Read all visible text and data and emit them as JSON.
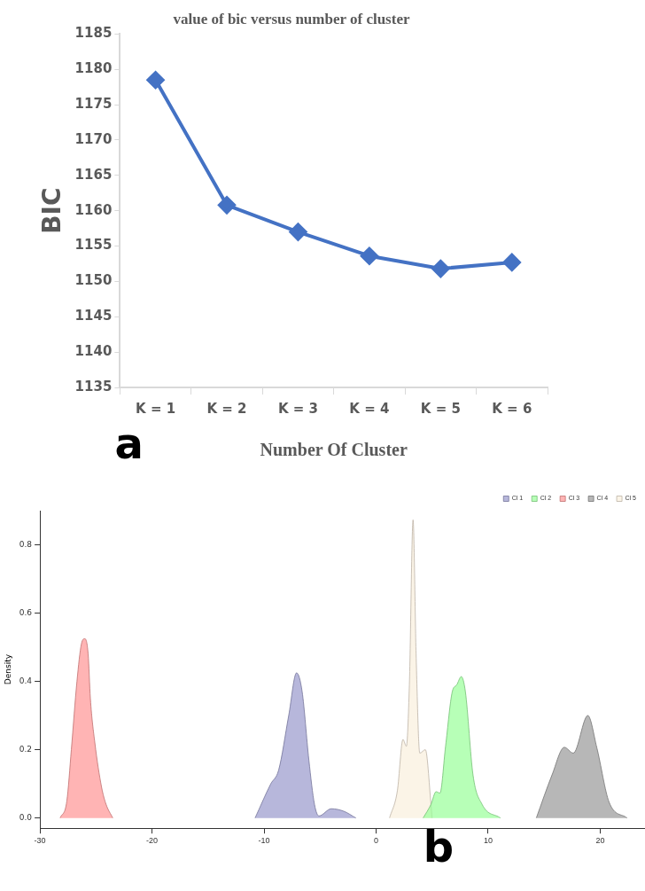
{
  "chart_data": [
    {
      "type": "line",
      "title": "value of bic versus number of cluster",
      "xlabel": "Number Of Cluster",
      "ylabel": "BIC",
      "annotations": [
        "a"
      ],
      "categories": [
        "K = 1",
        "K = 2",
        "K = 3",
        "K = 4",
        "K = 5",
        "K = 6"
      ],
      "series": [
        {
          "color": "#4472c4",
          "values": [
            1178.5,
            1160.8,
            1157,
            1153.6,
            1151.8,
            1152.7
          ]
        }
      ],
      "ylim": [
        1135,
        1185
      ],
      "yticks": [
        1135,
        1140,
        1145,
        1150,
        1155,
        1160,
        1165,
        1170,
        1175,
        1180,
        1185
      ],
      "grid": false,
      "marker": "diamond",
      "legend": false
    },
    {
      "type": "area",
      "ylabel": "Density",
      "annotations": [
        "b"
      ],
      "series": [
        {
          "name": "Cl 1",
          "color": "#9999cc",
          "x": [
            -10.8,
            -9.4,
            -8.7,
            -7.8,
            -7.1,
            -6.6,
            -6.0,
            -5.5,
            -5.1,
            -4.0,
            -2.9,
            -1.8
          ],
          "values": [
            0,
            0.1,
            0.14,
            0.3,
            0.425,
            0.37,
            0.17,
            0.04,
            0.006,
            0.027,
            0.02,
            0
          ]
        },
        {
          "name": "Cl 2",
          "color": "#99ff99",
          "x": [
            4.2,
            4.9,
            5.35,
            5.7,
            6.2,
            6.8,
            7.2,
            7.6,
            7.97,
            8.65,
            9.46,
            11.1
          ],
          "values": [
            0,
            0.04,
            0.077,
            0.073,
            0.21,
            0.37,
            0.39,
            0.414,
            0.37,
            0.126,
            0.04,
            0
          ]
        },
        {
          "name": "Cl 3",
          "color": "#ff9494",
          "x": [
            -28.2,
            -27.6,
            -27.2,
            -26.7,
            -26.3,
            -26.0,
            -25.7,
            -25.5,
            -25.1,
            -24.5,
            -24.1,
            -23.5
          ],
          "values": [
            0,
            0.05,
            0.2,
            0.4,
            0.51,
            0.525,
            0.48,
            0.35,
            0.22,
            0.09,
            0.04,
            0
          ]
        },
        {
          "name": "Cl 4",
          "color": "#999999",
          "x": [
            14.3,
            15.7,
            16.8,
            17.6,
            18.9,
            19.7,
            20.8,
            22.4
          ],
          "values": [
            0,
            0.126,
            0.207,
            0.19,
            0.3,
            0.206,
            0.046,
            0
          ]
        },
        {
          "name": "Cl 5",
          "color": "#faefdd",
          "x": [
            1.2,
            1.9,
            2.4,
            2.7,
            2.97,
            3.3,
            3.57,
            3.9,
            4.4,
            4.9,
            5.0
          ],
          "values": [
            0,
            0.08,
            0.23,
            0.21,
            0.39,
            0.873,
            0.48,
            0.19,
            0.2,
            0.04,
            0
          ]
        }
      ],
      "xlim": [
        -30,
        24
      ],
      "xticks": [
        -30,
        -20,
        -10,
        0,
        10,
        20
      ],
      "ylim": [
        -0.03,
        0.9
      ],
      "yticks": [
        {
          "value": 0,
          "label": "0.0"
        },
        0.2,
        0.4,
        0.6,
        0.8
      ],
      "grid": false,
      "marker": "none",
      "legend": "top right"
    }
  ]
}
